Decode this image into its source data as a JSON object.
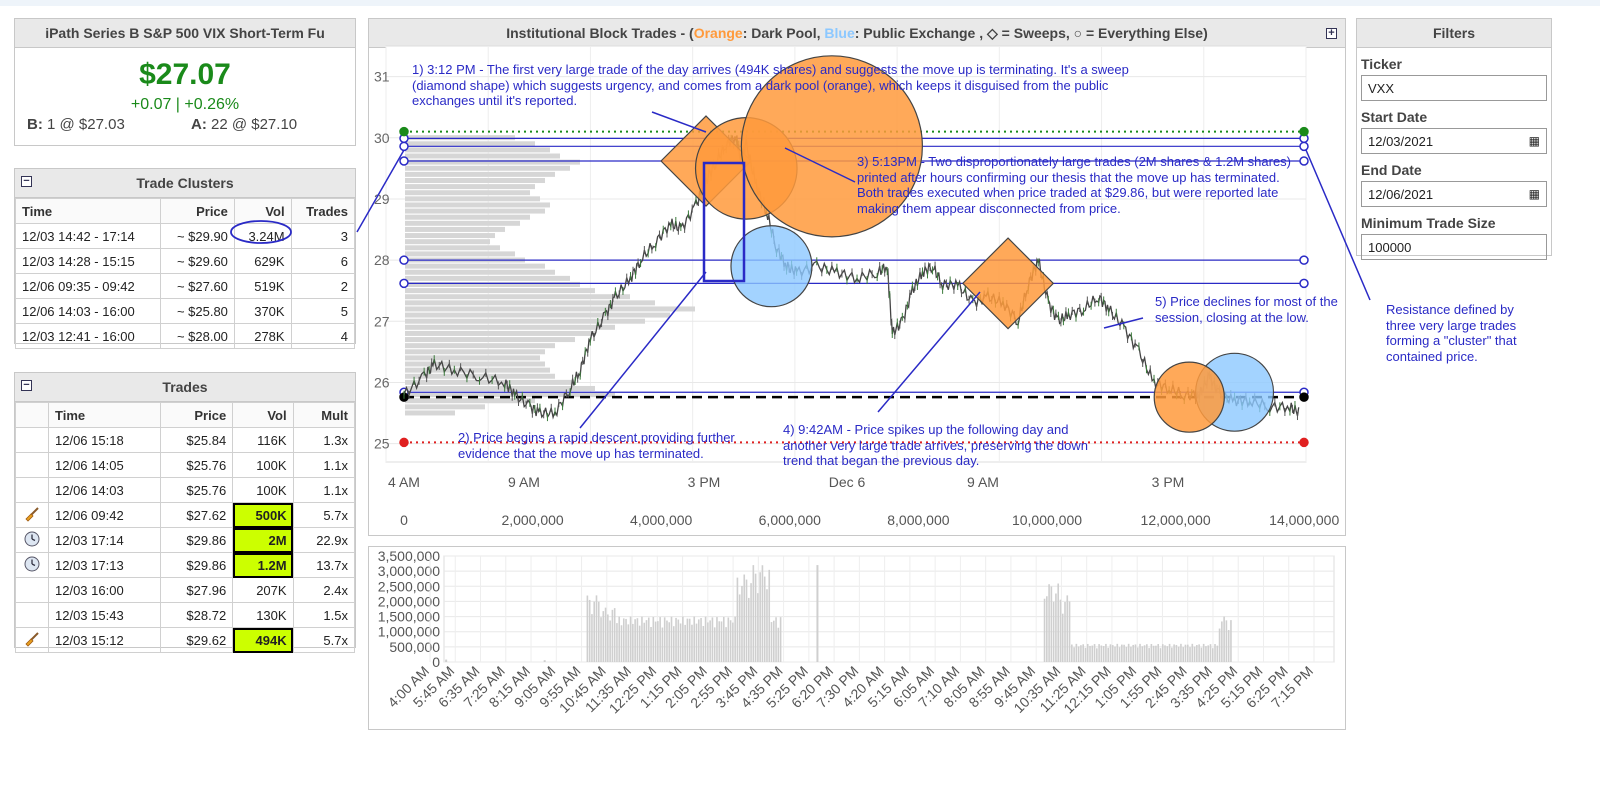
{
  "quote": {
    "name": "iPath Series B S&P 500 VIX Short-Term Fu",
    "price": "$27.07",
    "change": "+0.07 | +0.26%",
    "bid_label": "B:",
    "bid_value": "1 @ $27.03",
    "ask_label": "A:",
    "ask_value": "22 @ $27.10"
  },
  "clusters": {
    "title": "Trade Clusters",
    "collapse": "−",
    "headers": [
      "Time",
      "Price",
      "Vol",
      "Trades"
    ],
    "rows": [
      [
        "12/03 14:42 - 17:14",
        "~ $29.90",
        "3.24M",
        "3"
      ],
      [
        "12/03 14:28 - 15:15",
        "~ $29.60",
        "629K",
        "6"
      ],
      [
        "12/06 09:35 - 09:42",
        "~ $27.60",
        "519K",
        "2"
      ],
      [
        "12/06 14:03 - 16:00",
        "~ $25.80",
        "370K",
        "5"
      ],
      [
        "12/03 12:41 - 16:00",
        "~ $28.00",
        "278K",
        "4"
      ]
    ]
  },
  "trades": {
    "title": "Trades",
    "collapse": "−",
    "headers": [
      "",
      "Time",
      "Price",
      "Vol",
      "Mult"
    ],
    "rows": [
      {
        "icon": "",
        "time": "12/06 15:18",
        "price": "$25.84",
        "vol": "116K",
        "mult": "1.3x",
        "hl": false
      },
      {
        "icon": "",
        "time": "12/06 14:05",
        "price": "$25.76",
        "vol": "100K",
        "mult": "1.1x",
        "hl": false
      },
      {
        "icon": "",
        "time": "12/06 14:03",
        "price": "$25.76",
        "vol": "100K",
        "mult": "1.1x",
        "hl": false
      },
      {
        "icon": "broom-icon",
        "time": "12/06 09:42",
        "price": "$27.62",
        "vol": "500K",
        "mult": "5.7x",
        "hl": true
      },
      {
        "icon": "clock-icon",
        "time": "12/03 17:14",
        "price": "$29.86",
        "vol": "2M",
        "mult": "22.9x",
        "hl": true
      },
      {
        "icon": "clock-icon",
        "time": "12/03 17:13",
        "price": "$29.86",
        "vol": "1.2M",
        "mult": "13.7x",
        "hl": true
      },
      {
        "icon": "",
        "time": "12/03 16:00",
        "price": "$27.96",
        "vol": "207K",
        "mult": "2.4x",
        "hl": false
      },
      {
        "icon": "",
        "time": "12/03 15:43",
        "price": "$28.72",
        "vol": "130K",
        "mult": "1.5x",
        "hl": false
      },
      {
        "icon": "broom-icon",
        "time": "12/03 15:12",
        "price": "$29.62",
        "vol": "494K",
        "mult": "5.7x",
        "hl": true
      }
    ]
  },
  "chart_header": {
    "prefix": "Institutional Block Trades - (",
    "orange": "Orange",
    "mid1": ": Dark Pool, ",
    "blue": "Blue",
    "mid2": ": Public Exchange , ◇ = Sweeps, ○ = Everything Else)",
    "expand": "+"
  },
  "colors": {
    "dark_pool": "#ff9a3c",
    "public_exchange": "#8cc8ff",
    "annotation": "#2a2ac6",
    "price_up": "#1a8a1a",
    "highlight": "#ccff00"
  },
  "filters": {
    "title": "Filters",
    "ticker_label": "Ticker",
    "ticker_value": "VXX",
    "start_label": "Start Date",
    "start_value": "12/03/2021",
    "end_label": "End Date",
    "end_value": "12/06/2021",
    "min_label": "Minimum Trade Size",
    "min_value": "100000"
  },
  "annotations": {
    "n1": "1) 3:12 PM - The first very large trade of the day arrives (494K shares) and suggests the move up is terminating.  It's a sweep (diamond shape) which suggests urgency, and comes from a dark pool (orange), which keeps it disguised from the public exchanges until it's reported.",
    "n2": "2)  Price begins a rapid descent providing further evidence that the move up has terminated.",
    "n3": "3)  5:13PM - Two disproportionately large trades (2M shares & 1.2M shares) printed after hours confirming our thesis that the move up has terminated.  Both trades executed when price traded at $29.86, but were reported late making them appear disconnected from price.",
    "n4": "4)  9:42AM - Price spikes up the following day and another very large trade arrives, preserving the down trend that began the previous day.",
    "n5": "5) Price declines for most of the session, closing at the low.",
    "n6": "Resistance defined by three very large trades forming a \"cluster\" that contained price."
  },
  "chart_data": [
    {
      "type": "line",
      "y_ticks": [
        "25",
        "26",
        "27",
        "28",
        "29",
        "30",
        "31"
      ],
      "ylim": [
        24.7,
        31.5
      ],
      "x_time_ticks": [
        "4 AM",
        "9 AM",
        "3 PM",
        "Dec 6",
        "9 AM",
        "3 PM"
      ],
      "x_volume_ticks": [
        "0",
        "2,000,000",
        "4,000,000",
        "6,000,000",
        "8,000,000",
        "10,000,000",
        "12,000,000",
        "14,000,000"
      ],
      "price_path": [
        [
          0,
          25.8
        ],
        [
          4,
          26.1
        ],
        [
          6,
          26.3
        ],
        [
          10,
          26.2
        ],
        [
          15,
          26.1
        ],
        [
          20,
          26.0
        ],
        [
          22,
          25.8
        ],
        [
          25,
          25.6
        ],
        [
          27,
          25.5
        ],
        [
          30,
          25.5
        ],
        [
          33,
          25.9
        ],
        [
          35,
          26.2
        ],
        [
          37,
          26.7
        ],
        [
          40,
          27.1
        ],
        [
          42,
          27.4
        ],
        [
          45,
          27.7
        ],
        [
          47,
          28.0
        ],
        [
          50,
          28.3
        ],
        [
          53,
          28.6
        ],
        [
          55,
          28.5
        ],
        [
          58,
          28.9
        ],
        [
          60,
          29.3
        ],
        [
          62,
          29.6
        ],
        [
          64,
          29.9
        ],
        [
          66,
          30.0
        ],
        [
          67,
          29.6
        ],
        [
          68,
          29.9
        ],
        [
          70,
          29.2
        ],
        [
          72,
          28.8
        ],
        [
          74,
          28.2
        ],
        [
          76,
          27.9
        ],
        [
          78,
          27.8
        ],
        [
          82,
          27.9
        ],
        [
          86,
          27.8
        ],
        [
          90,
          27.7
        ],
        [
          94,
          27.8
        ],
        [
          96,
          27.9
        ],
        [
          97,
          26.8
        ],
        [
          99,
          27.0
        ],
        [
          101,
          27.5
        ],
        [
          103,
          27.8
        ],
        [
          105,
          27.9
        ],
        [
          107,
          27.6
        ],
        [
          110,
          27.6
        ],
        [
          113,
          27.3
        ],
        [
          116,
          27.4
        ],
        [
          119,
          27.3
        ],
        [
          122,
          27.0
        ],
        [
          124,
          27.6
        ],
        [
          126,
          28.0
        ],
        [
          128,
          27.3
        ],
        [
          130,
          27.0
        ],
        [
          132,
          27.1
        ],
        [
          135,
          27.2
        ],
        [
          138,
          27.4
        ],
        [
          140,
          27.2
        ],
        [
          143,
          26.9
        ],
        [
          146,
          26.5
        ],
        [
          149,
          26.0
        ],
        [
          152,
          25.9
        ],
        [
          155,
          25.8
        ],
        [
          158,
          25.8
        ],
        [
          160,
          26.1
        ],
        [
          162,
          25.8
        ],
        [
          165,
          25.7
        ],
        [
          168,
          25.7
        ],
        [
          172,
          25.6
        ],
        [
          176,
          25.6
        ],
        [
          178,
          25.5
        ]
      ],
      "levels": [
        {
          "value": 29.99,
          "color": "#2a2ac6",
          "style": "solid"
        },
        {
          "value": 29.86,
          "color": "#2a2ac6",
          "style": "solid"
        },
        {
          "value": 29.62,
          "color": "#2a2ac6",
          "style": "solid"
        },
        {
          "value": 28.0,
          "color": "#2a2ac6",
          "style": "solid"
        },
        {
          "value": 27.62,
          "color": "#2a2ac6",
          "style": "solid"
        },
        {
          "value": 25.84,
          "color": "#2a2ac6",
          "style": "solid"
        },
        {
          "value": 25.76,
          "color": "#000000",
          "style": "dashed"
        },
        {
          "value": 30.1,
          "color": "#1a8a1a",
          "style": "dotted"
        },
        {
          "value": 25.02,
          "color": "#e02020",
          "style": "dotted"
        }
      ],
      "trade_markers": [
        {
          "x": 60,
          "price": 29.62,
          "size": 494000,
          "venue": "dark_pool",
          "shape": "diamond"
        },
        {
          "x": 68,
          "price": 29.5,
          "size": 629000,
          "venue": "dark_pool",
          "shape": "circle"
        },
        {
          "x": 73,
          "price": 27.9,
          "size": 400000,
          "venue": "public_exchange",
          "shape": "circle"
        },
        {
          "x": 85,
          "price": 29.86,
          "size": 2000000,
          "venue": "dark_pool",
          "shape": "circle"
        },
        {
          "x": 120,
          "price": 27.62,
          "size": 500000,
          "venue": "dark_pool",
          "shape": "diamond"
        },
        {
          "x": 165,
          "price": 25.84,
          "size": 370000,
          "venue": "public_exchange",
          "shape": "circle"
        },
        {
          "x": 156,
          "price": 25.76,
          "size": 300000,
          "venue": "dark_pool",
          "shape": "circle"
        }
      ],
      "volume_at_price": [
        [
          30.0,
          2.2
        ],
        [
          29.9,
          2.6
        ],
        [
          29.8,
          2.9
        ],
        [
          29.7,
          3.1
        ],
        [
          29.6,
          3.5
        ],
        [
          29.5,
          3.3
        ],
        [
          29.4,
          3.0
        ],
        [
          29.3,
          2.8
        ],
        [
          29.2,
          2.6
        ],
        [
          29.1,
          2.5
        ],
        [
          29.0,
          2.7
        ],
        [
          28.9,
          2.9
        ],
        [
          28.8,
          2.8
        ],
        [
          28.7,
          2.5
        ],
        [
          28.6,
          2.3
        ],
        [
          28.5,
          2.0
        ],
        [
          28.4,
          1.8
        ],
        [
          28.3,
          1.7
        ],
        [
          28.2,
          1.9
        ],
        [
          28.1,
          2.2
        ],
        [
          28.0,
          2.4
        ],
        [
          27.9,
          2.8
        ],
        [
          27.8,
          3.0
        ],
        [
          27.7,
          3.3
        ],
        [
          27.6,
          3.5
        ],
        [
          27.5,
          3.8
        ],
        [
          27.4,
          4.5
        ],
        [
          27.3,
          5.0
        ],
        [
          27.2,
          5.8
        ],
        [
          27.1,
          5.3
        ],
        [
          27.0,
          4.8
        ],
        [
          26.9,
          4.2
        ],
        [
          26.8,
          3.8
        ],
        [
          26.7,
          3.4
        ],
        [
          26.6,
          3.0
        ],
        [
          26.5,
          2.8
        ],
        [
          26.4,
          2.7
        ],
        [
          26.3,
          2.8
        ],
        [
          26.2,
          2.9
        ],
        [
          26.1,
          3.0
        ],
        [
          26.0,
          3.4
        ],
        [
          25.9,
          3.8
        ],
        [
          25.8,
          4.2
        ],
        [
          25.7,
          2.6
        ],
        [
          25.6,
          1.6
        ],
        [
          25.5,
          1.0
        ]
      ]
    },
    {
      "type": "bar",
      "y_ticks": [
        "3,500,000",
        "3,000,000",
        "2,500,000",
        "2,000,000",
        "1,500,000",
        "1,000,000",
        "500,000",
        "0"
      ],
      "ylim": [
        0,
        3500000
      ],
      "x_ticks": [
        "4:00 AM",
        "5:45 AM",
        "6:35 AM",
        "7:25 AM",
        "8:15 AM",
        "9:05 AM",
        "9:55 AM",
        "10:45 AM",
        "11:35 AM",
        "12:25 PM",
        "1:15 PM",
        "2:05 PM",
        "2:55 PM",
        "3:45 PM",
        "4:35 PM",
        "5:25 PM",
        "6:20 PM",
        "7:30 PM",
        "4:20 AM",
        "5:15 AM",
        "6:05 AM",
        "7:10 AM",
        "8:05 AM",
        "8:55 AM",
        "9:45 AM",
        "10:35 AM",
        "11:25 AM",
        "12:15 PM",
        "1:05 PM",
        "1:55 PM",
        "2:45 PM",
        "3:35 PM",
        "4:25 PM",
        "5:15 PM",
        "6:25 PM",
        "7:15 PM"
      ],
      "volume_groups": [
        {
          "start_tick": 6.2,
          "end_tick": 13.9,
          "base": 1500000,
          "peaks": [
            [
              6.3,
              2200000
            ],
            [
              7.0,
              1800000
            ],
            [
              12.4,
              2900000
            ],
            [
              13.1,
              3200000
            ]
          ]
        },
        {
          "start_tick": 24.3,
          "end_tick": 31.7,
          "base": 600000,
          "peaks": [
            [
              24.5,
              2600000
            ],
            [
              25.0,
              2200000
            ],
            [
              31.5,
              1500000
            ]
          ]
        }
      ],
      "spikes": [
        [
          15.3,
          3200000
        ],
        [
          0.6,
          80000
        ],
        [
          4.5,
          60000
        ]
      ]
    }
  ]
}
